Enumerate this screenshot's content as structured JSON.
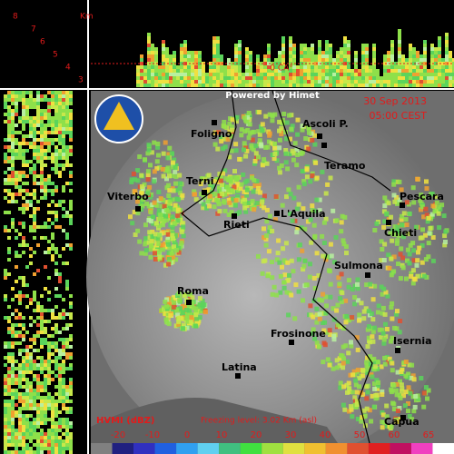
{
  "height_scale": {
    "unit": "Km",
    "levels": [
      "8",
      "7",
      "6",
      "5",
      "4",
      "3"
    ]
  },
  "freezing_mark": "0 CA°",
  "credit": "Powered by Himet",
  "date": "30 Sep 2013",
  "time": "05:00 CEST",
  "cities": [
    "Ascoli P.",
    "Foligno",
    "Teramo",
    "Terni",
    "Pescara",
    "Viterbo",
    "Rieti",
    "L'Aquila",
    "Chieti",
    "Sulmona",
    "Roma",
    "Frosinone",
    "Isernia",
    "Latina",
    "Capua"
  ],
  "legend": {
    "title": "HVMI (dBZ)",
    "freezing_level": "Freezing level: 3.02 Km (asl)",
    "scale": [
      "-20",
      "-10",
      "0",
      "10",
      "20",
      "30",
      "40",
      "50",
      "60",
      "65"
    ]
  }
}
